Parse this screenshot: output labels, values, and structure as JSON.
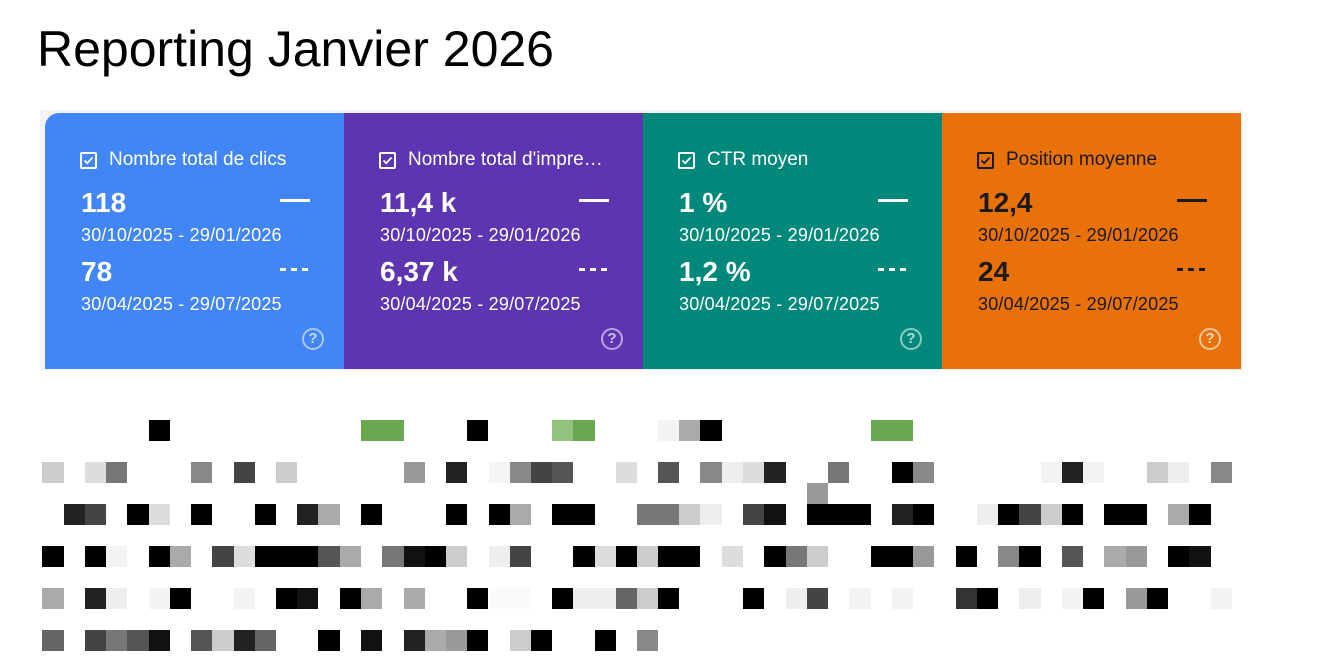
{
  "report": {
    "title": "Reporting Janvier 2026"
  },
  "colors": {
    "clicks": "#4285f4",
    "impressions": "#5e35b1",
    "ctr": "#00897b",
    "position": "#e8710a"
  },
  "metrics": [
    {
      "label": "Nombre total de clics",
      "value_current": "118",
      "range_current": "30/10/2025 - 29/01/2026",
      "value_previous": "78",
      "range_previous": "30/04/2025 - 29/07/2025",
      "help": "?"
    },
    {
      "label": "Nombre total d'impre…",
      "value_current": "11,4 k",
      "range_current": "30/10/2025 - 29/01/2026",
      "value_previous": "6,37 k",
      "range_previous": "30/04/2025 - 29/07/2025",
      "help": "?"
    },
    {
      "label": "CTR moyen",
      "value_current": "1 %",
      "range_current": "30/10/2025 - 29/01/2026",
      "value_previous": "1,2 %",
      "range_previous": "30/04/2025 - 29/07/2025",
      "help": "?"
    },
    {
      "label": "Position moyenne",
      "value_current": "12,4",
      "range_current": "30/10/2025 - 29/01/2026",
      "value_previous": "24",
      "range_previous": "30/04/2025 - 29/07/2025",
      "help": "?"
    }
  ]
}
